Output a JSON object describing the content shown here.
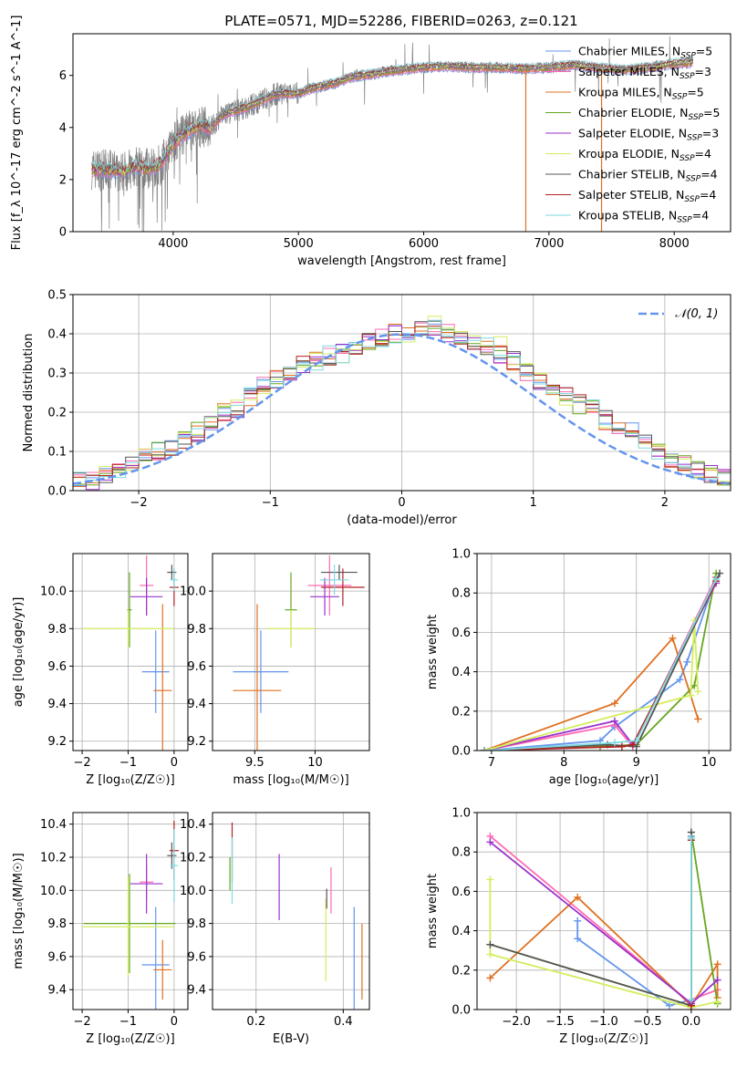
{
  "title": "PLATE=0571, MJD=52286, FIBERID=0263, z=0.121",
  "colors": {
    "chabrier_miles": "#6495ed",
    "salpeter_miles": "#ff69b4",
    "kroupa_miles": "#e07020",
    "chabrier_elodie": "#66a61e",
    "salpeter_elodie": "#9932cc",
    "kroupa_elodie": "#d4ed5f",
    "chabrier_stelib": "#555555",
    "salpeter_stelib": "#b22222",
    "kroupa_stelib": "#7fd9e0",
    "data": "#808080",
    "normal": "#6495ed"
  },
  "chart_data": [
    {
      "id": "spectrum",
      "type": "line",
      "xlabel": "wavelength [Angstrom, rest frame]",
      "ylabel": "Flux [f_λ 10^-17 erg cm^-2 s^-1 A^-1]",
      "xlim": [
        3200,
        8450
      ],
      "ylim": [
        0,
        7.6
      ],
      "xticks": [
        4000,
        5000,
        6000,
        7000,
        8000
      ],
      "yticks": [
        0,
        2,
        4,
        6
      ],
      "legend": [
        {
          "key": "chabrier_miles",
          "name": "Chabrier MILES, N",
          "sub": "SSP",
          "tail": "=5"
        },
        {
          "key": "salpeter_miles",
          "name": "Salpeter MILES, N",
          "sub": "SSP",
          "tail": "=3"
        },
        {
          "key": "kroupa_miles",
          "name": "Kroupa MILES, N",
          "sub": "SSP",
          "tail": "=5"
        },
        {
          "key": "chabrier_elodie",
          "name": "Chabrier ELODIE, N",
          "sub": "SSP",
          "tail": "=5"
        },
        {
          "key": "salpeter_elodie",
          "name": "Salpeter ELODIE, N",
          "sub": "SSP",
          "tail": "=3"
        },
        {
          "key": "kroupa_elodie",
          "name": "Kroupa ELODIE, N",
          "sub": "SSP",
          "tail": "=4"
        },
        {
          "key": "chabrier_stelib",
          "name": "Chabrier STELIB, N",
          "sub": "SSP",
          "tail": "=4"
        },
        {
          "key": "salpeter_stelib",
          "name": "Salpeter STELIB, N",
          "sub": "SSP",
          "tail": "=4"
        },
        {
          "key": "kroupa_stelib",
          "name": "Kroupa STELIB, N",
          "sub": "SSP",
          "tail": "=4"
        }
      ],
      "continuum": [
        [
          3350,
          2.4
        ],
        [
          3500,
          2.35
        ],
        [
          3600,
          2.3
        ],
        [
          3700,
          2.5
        ],
        [
          3800,
          2.4
        ],
        [
          3900,
          2.6
        ],
        [
          4000,
          3.4
        ],
        [
          4100,
          3.8
        ],
        [
          4200,
          4.05
        ],
        [
          4300,
          4.0
        ],
        [
          4400,
          4.5
        ],
        [
          4500,
          4.65
        ],
        [
          4600,
          4.8
        ],
        [
          4700,
          5.0
        ],
        [
          4800,
          5.25
        ],
        [
          4900,
          5.3
        ],
        [
          5000,
          5.3
        ],
        [
          5100,
          5.5
        ],
        [
          5200,
          5.6
        ],
        [
          5300,
          5.7
        ],
        [
          5400,
          5.9
        ],
        [
          5500,
          6.0
        ],
        [
          5600,
          6.05
        ],
        [
          5700,
          6.15
        ],
        [
          5800,
          6.2
        ],
        [
          5900,
          6.25
        ],
        [
          6000,
          6.3
        ],
        [
          6200,
          6.35
        ],
        [
          6400,
          6.3
        ],
        [
          6600,
          6.3
        ],
        [
          6800,
          6.25
        ],
        [
          7000,
          6.3
        ],
        [
          7200,
          6.4
        ],
        [
          7400,
          6.3
        ],
        [
          7600,
          6.2
        ],
        [
          7800,
          6.3
        ],
        [
          8000,
          6.45
        ],
        [
          8150,
          6.5
        ]
      ],
      "dropouts": [
        {
          "key": "kroupa_miles",
          "x": 6815
        },
        {
          "key": "kroupa_miles",
          "x": 7420
        }
      ]
    },
    {
      "id": "residuals",
      "type": "bar",
      "xlabel": "(data-model)/error",
      "ylabel": "Normed distribution",
      "xlim": [
        -2.5,
        2.5
      ],
      "ylim": [
        0,
        0.5
      ],
      "xticks": [
        -2,
        -1,
        0,
        1,
        2
      ],
      "yticks": [
        0.0,
        0.1,
        0.2,
        0.3,
        0.4,
        0.5
      ],
      "legend_label": "𝒩(0, 1)",
      "bin_width": 0.1,
      "hist": [
        0.022,
        0.025,
        0.04,
        0.055,
        0.07,
        0.085,
        0.1,
        0.112,
        0.13,
        0.15,
        0.165,
        0.2,
        0.21,
        0.24,
        0.265,
        0.285,
        0.29,
        0.32,
        0.33,
        0.345,
        0.35,
        0.37,
        0.38,
        0.39,
        0.4,
        0.4,
        0.41,
        0.42,
        0.4,
        0.39,
        0.38,
        0.37,
        0.35,
        0.33,
        0.3,
        0.28,
        0.26,
        0.24,
        0.22,
        0.21,
        0.18,
        0.16,
        0.15,
        0.12,
        0.1,
        0.08,
        0.065,
        0.05,
        0.04,
        0.03
      ]
    },
    {
      "id": "age-vs-z",
      "type": "scatter",
      "xlabel": "Z [log₁₀(Z/Z☉)]",
      "ylabel": "age  [log₁₀(age/yr)]",
      "xlim": [
        -2.2,
        0.3
      ],
      "ylim": [
        9.15,
        10.2
      ],
      "xticks": [
        -2,
        -1,
        0
      ],
      "yticks": [
        9.2,
        9.4,
        9.6,
        9.8,
        10.0
      ],
      "points": [
        {
          "key": "chabrier_miles",
          "x": -0.4,
          "y": 9.57,
          "xerr": 0.3,
          "yerr": 0.22
        },
        {
          "key": "salpeter_miles",
          "x": -0.6,
          "y": 10.03,
          "xerr": 0.15,
          "yerr": 0.16
        },
        {
          "key": "kroupa_miles",
          "x": -0.25,
          "y": 9.47,
          "xerr": 0.2,
          "yerr": 0.46
        },
        {
          "key": "chabrier_elodie",
          "x": -0.97,
          "y": 9.9,
          "xerr": 0.05,
          "yerr": 0.2
        },
        {
          "key": "salpeter_elodie",
          "x": -0.6,
          "y": 9.97,
          "xerr": 0.35,
          "yerr": 0.1
        },
        {
          "key": "kroupa_elodie",
          "x": -1.0,
          "y": 9.8,
          "xerr": 1.0,
          "yerr": 0.1
        },
        {
          "key": "chabrier_stelib",
          "x": -0.05,
          "y": 10.1,
          "xerr": 0.1,
          "yerr": 0.04
        },
        {
          "key": "salpeter_stelib",
          "x": 0.0,
          "y": 10.02,
          "xerr": 0.1,
          "yerr": 0.1
        },
        {
          "key": "kroupa_stelib",
          "x": 0.0,
          "y": 10.06,
          "xerr": 0.08,
          "yerr": 0.06
        }
      ]
    },
    {
      "id": "age-vs-mass",
      "type": "scatter",
      "xlabel": "mass [log₁₀(M/M☉)]",
      "ylabel": "",
      "xlim": [
        9.15,
        10.45
      ],
      "ylim": [
        9.15,
        10.2
      ],
      "xticks": [
        9.5,
        10.0
      ],
      "yticks": [
        9.2,
        9.4,
        9.6,
        9.8,
        10.0
      ],
      "points": [
        {
          "key": "chabrier_miles",
          "x": 9.55,
          "y": 9.57,
          "xerr": 0.23,
          "yerr": 0.22
        },
        {
          "key": "salpeter_miles",
          "x": 10.12,
          "y": 10.03,
          "xerr": 0.18,
          "yerr": 0.16
        },
        {
          "key": "kroupa_miles",
          "x": 9.52,
          "y": 9.47,
          "xerr": 0.2,
          "yerr": 0.46
        },
        {
          "key": "chabrier_elodie",
          "x": 9.8,
          "y": 9.9,
          "xerr": 0.05,
          "yerr": 0.2
        },
        {
          "key": "salpeter_elodie",
          "x": 10.08,
          "y": 9.97,
          "xerr": 0.12,
          "yerr": 0.1
        },
        {
          "key": "kroupa_elodie",
          "x": 9.8,
          "y": 9.8,
          "xerr": 0.2,
          "yerr": 0.1
        },
        {
          "key": "chabrier_stelib",
          "x": 10.2,
          "y": 10.1,
          "xerr": 0.15,
          "yerr": 0.04
        },
        {
          "key": "salpeter_stelib",
          "x": 10.23,
          "y": 10.02,
          "xerr": 0.18,
          "yerr": 0.1
        },
        {
          "key": "kroupa_stelib",
          "x": 10.16,
          "y": 10.06,
          "xerr": 0.12,
          "yerr": 0.08
        }
      ]
    },
    {
      "id": "weight-vs-age",
      "type": "line",
      "xlabel": "age  [log₁₀(age/yr)]",
      "ylabel": "mass weight",
      "xlim": [
        6.8,
        10.3
      ],
      "ylim": [
        0,
        1.0
      ],
      "xticks": [
        7,
        8,
        9,
        10
      ],
      "yticks": [
        0.0,
        0.2,
        0.4,
        0.6,
        0.8,
        1.0
      ],
      "series": [
        {
          "key": "chabrier_miles",
          "x": [
            6.9,
            8.5,
            8.7,
            9.6,
            9.7,
            10.1
          ],
          "y": [
            0.0,
            0.05,
            0.12,
            0.36,
            0.45,
            0.88
          ]
        },
        {
          "key": "salpeter_miles",
          "x": [
            6.9,
            8.7,
            8.95,
            10.1
          ],
          "y": [
            0.0,
            0.13,
            0.02,
            0.88
          ]
        },
        {
          "key": "kroupa_miles",
          "x": [
            6.9,
            8.7,
            9.5,
            9.85
          ],
          "y": [
            0.0,
            0.24,
            0.57,
            0.16
          ]
        },
        {
          "key": "chabrier_elodie",
          "x": [
            6.9,
            8.5,
            9.0,
            9.8,
            10.1
          ],
          "y": [
            0.0,
            0.02,
            0.03,
            0.33,
            0.9
          ]
        },
        {
          "key": "salpeter_elodie",
          "x": [
            6.9,
            8.7,
            8.95,
            10.1
          ],
          "y": [
            0.0,
            0.15,
            0.03,
            0.85
          ]
        },
        {
          "key": "kroupa_elodie",
          "x": [
            6.9,
            9.75,
            9.8,
            9.85
          ],
          "y": [
            0.0,
            0.28,
            0.66,
            0.3
          ]
        },
        {
          "key": "chabrier_stelib",
          "x": [
            6.9,
            8.6,
            9.0,
            10.15
          ],
          "y": [
            0.0,
            0.03,
            0.02,
            0.9
          ]
        },
        {
          "key": "salpeter_stelib",
          "x": [
            6.9,
            8.8,
            8.95,
            10.1
          ],
          "y": [
            0.0,
            0.02,
            0.03,
            0.86
          ]
        },
        {
          "key": "kroupa_stelib",
          "x": [
            6.9,
            8.7,
            9.0,
            10.1
          ],
          "y": [
            0.0,
            0.04,
            0.05,
            0.87
          ]
        }
      ]
    },
    {
      "id": "mass-vs-z",
      "type": "scatter",
      "xlabel": "Z [log₁₀(Z/Z☉)]",
      "ylabel": "mass [log₁₀(M/M☉)]",
      "xlim": [
        -2.2,
        0.3
      ],
      "ylim": [
        9.28,
        10.47
      ],
      "xticks": [
        -2,
        -1,
        0
      ],
      "yticks": [
        9.4,
        9.6,
        9.8,
        10.0,
        10.2,
        10.4
      ],
      "points": [
        {
          "key": "chabrier_miles",
          "x": -0.4,
          "y": 9.55,
          "xerr": 0.3,
          "yerr": 0.35
        },
        {
          "key": "salpeter_miles",
          "x": -0.6,
          "y": 10.05,
          "xerr": 0.15,
          "yerr": 0.1
        },
        {
          "key": "kroupa_miles",
          "x": -0.25,
          "y": 9.52,
          "xerr": 0.2,
          "yerr": 0.18
        },
        {
          "key": "chabrier_elodie",
          "x": -0.97,
          "y": 9.8,
          "xerr": 1.0,
          "yerr": 0.3
        },
        {
          "key": "salpeter_elodie",
          "x": -0.6,
          "y": 10.04,
          "xerr": 0.35,
          "yerr": 0.18
        },
        {
          "key": "kroupa_elodie",
          "x": -1.0,
          "y": 9.78,
          "xerr": 1.0,
          "yerr": 0.3
        },
        {
          "key": "chabrier_stelib",
          "x": -0.05,
          "y": 10.21,
          "xerr": 0.1,
          "yerr": 0.08
        },
        {
          "key": "salpeter_stelib",
          "x": 0.0,
          "y": 10.24,
          "xerr": 0.1,
          "yerr": 0.18
        },
        {
          "key": "kroupa_stelib",
          "x": 0.0,
          "y": 10.15,
          "xerr": 0.08,
          "yerr": 0.22
        }
      ]
    },
    {
      "id": "mass-vs-ebv",
      "type": "scatter",
      "xlabel": "E(B-V)",
      "ylabel": "",
      "xlim": [
        0.1,
        0.46
      ],
      "ylim": [
        9.28,
        10.47
      ],
      "xticks": [
        0.2,
        0.4
      ],
      "yticks": [
        9.4,
        9.6,
        9.8,
        10.0,
        10.2,
        10.4
      ],
      "points": [
        {
          "key": "chabrier_miles",
          "x": 0.425,
          "y": 9.55,
          "xerr": 0,
          "yerr": 0.35
        },
        {
          "key": "salpeter_miles",
          "x": 0.372,
          "y": 10.0,
          "xerr": 0,
          "yerr": 0.14
        },
        {
          "key": "kroupa_miles",
          "x": 0.443,
          "y": 9.57,
          "xerr": 0,
          "yerr": 0.23
        },
        {
          "key": "chabrier_elodie",
          "x": 0.14,
          "y": 10.1,
          "xerr": 0,
          "yerr": 0.1
        },
        {
          "key": "salpeter_elodie",
          "x": 0.253,
          "y": 10.02,
          "xerr": 0,
          "yerr": 0.2
        },
        {
          "key": "kroupa_elodie",
          "x": 0.36,
          "y": 9.7,
          "xerr": 0,
          "yerr": 0.25
        },
        {
          "key": "chabrier_stelib",
          "x": 0.362,
          "y": 9.95,
          "xerr": 0,
          "yerr": 0.06
        },
        {
          "key": "salpeter_stelib",
          "x": 0.145,
          "y": 10.23,
          "xerr": 0,
          "yerr": 0.18
        },
        {
          "key": "kroupa_stelib",
          "x": 0.145,
          "y": 10.12,
          "xerr": 0,
          "yerr": 0.2
        }
      ]
    },
    {
      "id": "weight-vs-z",
      "type": "line",
      "xlabel": "Z [log₁₀(Z/Z☉)]",
      "ylabel": "mass weight",
      "xlim": [
        -2.45,
        0.45
      ],
      "ylim": [
        0,
        1.0
      ],
      "xticks": [
        -2.0,
        -1.5,
        -1.0,
        -0.5,
        0.0
      ],
      "yticks": [
        0.0,
        0.2,
        0.4,
        0.6,
        0.8,
        1.0
      ],
      "series": [
        {
          "key": "chabrier_miles",
          "x": [
            -1.3,
            -1.3,
            -0.25,
            0.0,
            0.0
          ],
          "y": [
            0.45,
            0.36,
            0.02,
            0.05,
            0.88
          ]
        },
        {
          "key": "salpeter_miles",
          "x": [
            -2.3,
            0.0,
            0.0,
            0.3
          ],
          "y": [
            0.88,
            0.03,
            0.05,
            0.1
          ]
        },
        {
          "key": "kroupa_miles",
          "x": [
            -2.3,
            -1.3,
            0.0,
            0.3,
            0.3
          ],
          "y": [
            0.16,
            0.57,
            0.02,
            0.23,
            0.06
          ]
        },
        {
          "key": "chabrier_elodie",
          "x": [
            -2.3,
            0.0,
            0.0,
            0.3
          ],
          "y": [
            0.33,
            0.02,
            0.9,
            0.03
          ]
        },
        {
          "key": "salpeter_elodie",
          "x": [
            -2.3,
            0.0,
            0.3
          ],
          "y": [
            0.85,
            0.03,
            0.15
          ]
        },
        {
          "key": "kroupa_elodie",
          "x": [
            -2.3,
            -2.3,
            0.0,
            0.3
          ],
          "y": [
            0.66,
            0.28,
            0.01,
            0.04
          ]
        },
        {
          "key": "chabrier_stelib",
          "x": [
            -2.3,
            0.0,
            0.0
          ],
          "y": [
            0.33,
            0.02,
            0.9
          ]
        },
        {
          "key": "salpeter_stelib",
          "x": [
            0.0,
            0.0
          ],
          "y": [
            0.02,
            0.86
          ]
        },
        {
          "key": "kroupa_stelib",
          "x": [
            0.0,
            0.0
          ],
          "y": [
            0.05,
            0.87
          ]
        }
      ]
    }
  ]
}
